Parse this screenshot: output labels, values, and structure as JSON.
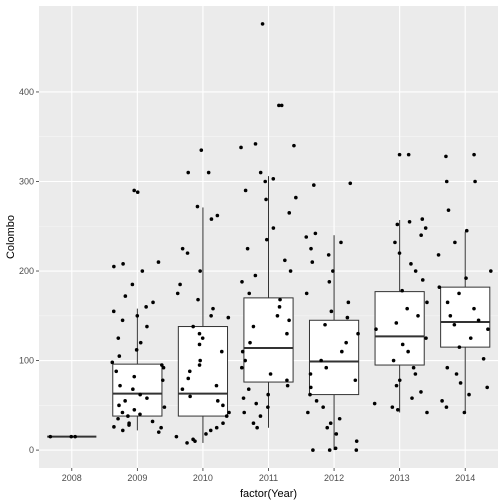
{
  "chart_data": {
    "type": "boxplot",
    "xlabel": "factor(Year)",
    "ylabel": "Colombo",
    "ylim": [
      -20,
      496
    ],
    "y_ticks": [
      0,
      100,
      200,
      300,
      400
    ],
    "categories": [
      "2008",
      "2009",
      "2010",
      "2011",
      "2012",
      "2013",
      "2014"
    ],
    "grid": true,
    "colors": {
      "panel": "#ebebeb",
      "grid_major": "#ffffff",
      "grid_minor": "#f5f5f5",
      "box_fill": "#ffffff",
      "box_stroke": "#333333",
      "point": "#000000"
    },
    "boxes": [
      {
        "category": "2008",
        "min": 15,
        "q1": 15,
        "median": 15,
        "q3": 15,
        "max": 15
      },
      {
        "category": "2009",
        "min": 22,
        "q1": 38,
        "median": 63,
        "q3": 96,
        "max": 158
      },
      {
        "category": "2010",
        "min": 8,
        "q1": 38,
        "median": 63,
        "q3": 138,
        "max": 271
      },
      {
        "category": "2011",
        "min": 25,
        "q1": 76,
        "median": 114,
        "q3": 170,
        "max": 306
      },
      {
        "category": "2012",
        "min": 0,
        "q1": 62,
        "median": 99,
        "q3": 145,
        "max": 240
      },
      {
        "category": "2013",
        "min": 42,
        "q1": 95,
        "median": 127,
        "q3": 177,
        "max": 257
      },
      {
        "category": "2014",
        "min": 42,
        "q1": 115,
        "median": 143,
        "q3": 182,
        "max": 244
      }
    ],
    "points": [
      {
        "category": "2008",
        "values": [
          15,
          15,
          15
        ]
      },
      {
        "category": "2009",
        "values": [
          208,
          290,
          288,
          205,
          210,
          200,
          185,
          172,
          165,
          160,
          155,
          150,
          145,
          138,
          125,
          120,
          112,
          105,
          98,
          95,
          92,
          88,
          82,
          78,
          72,
          68,
          62,
          58,
          55,
          50,
          48,
          45,
          42,
          40,
          38,
          35,
          32,
          30,
          28,
          26,
          25,
          22,
          20
        ]
      },
      {
        "category": "2010",
        "values": [
          335,
          310,
          310,
          272,
          262,
          258,
          225,
          220,
          200,
          185,
          175,
          168,
          158,
          150,
          148,
          138,
          130,
          125,
          118,
          110,
          100,
          95,
          88,
          80,
          72,
          68,
          60,
          55,
          50,
          42,
          38,
          30,
          25,
          22,
          18,
          15,
          12,
          10,
          8
        ]
      },
      {
        "category": "2011",
        "values": [
          476,
          385,
          385,
          342,
          340,
          338,
          310,
          303,
          300,
          290,
          282,
          280,
          265,
          248,
          235,
          225,
          212,
          200,
          195,
          188,
          175,
          168,
          160,
          150,
          145,
          138,
          130,
          120,
          110,
          100,
          92,
          85,
          78,
          72,
          68,
          62,
          58,
          52,
          48,
          42,
          38,
          30,
          25
        ]
      },
      {
        "category": "2012",
        "values": [
          298,
          296,
          242,
          238,
          232,
          225,
          218,
          210,
          200,
          188,
          175,
          165,
          155,
          148,
          140,
          130,
          120,
          110,
          100,
          92,
          85,
          78,
          70,
          62,
          55,
          48,
          42,
          35,
          30,
          25,
          18,
          10,
          2,
          0,
          0,
          0
        ]
      },
      {
        "category": "2013",
        "values": [
          330,
          330,
          258,
          255,
          252,
          248,
          240,
          232,
          220,
          208,
          200,
          190,
          178,
          165,
          158,
          150,
          142,
          135,
          125,
          118,
          110,
          100,
          92,
          85,
          78,
          72,
          65,
          58,
          52,
          48,
          45,
          42
        ]
      },
      {
        "category": "2014",
        "values": [
          330,
          328,
          300,
          300,
          268,
          245,
          232,
          218,
          200,
          192,
          182,
          175,
          165,
          158,
          150,
          145,
          140,
          135,
          125,
          115,
          102,
          92,
          85,
          75,
          70,
          62,
          55,
          48,
          42
        ]
      }
    ]
  }
}
